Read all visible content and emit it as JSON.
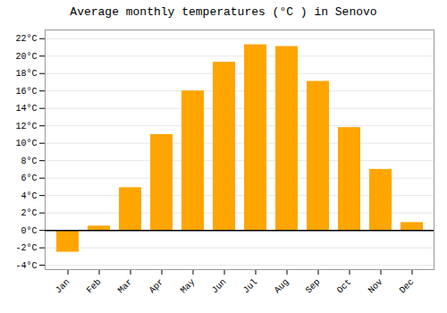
{
  "chart_data": {
    "type": "bar",
    "title": "Average monthly temperatures (°C ) in Senovo",
    "categories": [
      "Jan",
      "Feb",
      "Mar",
      "Apr",
      "May",
      "Jun",
      "Jul",
      "Aug",
      "Sep",
      "Oct",
      "Nov",
      "Dec"
    ],
    "values": [
      -2.5,
      0.5,
      4.9,
      11.0,
      16.0,
      19.3,
      21.3,
      21.1,
      17.1,
      11.8,
      7.0,
      0.9
    ],
    "color": "#FFA500",
    "ylim": [
      -4.5,
      23
    ],
    "yticks": [
      {
        "value": -4,
        "label": "-4°C"
      },
      {
        "value": -2,
        "label": "-2°C"
      },
      {
        "value": 0,
        "label": "0°C"
      },
      {
        "value": 2,
        "label": "2°C"
      },
      {
        "value": 4,
        "label": "4°C"
      },
      {
        "value": 6,
        "label": "6°C"
      },
      {
        "value": 8,
        "label": "8°C"
      },
      {
        "value": 10,
        "label": "10°C"
      },
      {
        "value": 12,
        "label": "12°C"
      },
      {
        "value": 14,
        "label": "14°C"
      },
      {
        "value": 16,
        "label": "16°C"
      },
      {
        "value": 18,
        "label": "18°C"
      },
      {
        "value": 20,
        "label": "20°C"
      },
      {
        "value": 22,
        "label": "22°C"
      }
    ],
    "grid": true
  }
}
